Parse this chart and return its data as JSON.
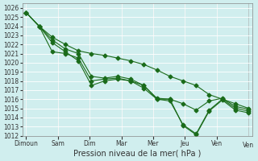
{
  "title": "",
  "xlabel": "Pression niveau de la mer( hPa )",
  "ylabel": "",
  "background_color": "#d0eeee",
  "grid_color": "#ffffff",
  "line_color": "#1a6b1a",
  "ylim": [
    1012,
    1026
  ],
  "yticks": [
    1012,
    1013,
    1014,
    1015,
    1016,
    1017,
    1018,
    1019,
    1020,
    1021,
    1022,
    1023,
    1024,
    1025,
    1026
  ],
  "xtick_labels": [
    "Dimoun",
    "Sam",
    "Dim",
    "Mar",
    "Mer",
    "Jeu",
    "Ven"
  ],
  "series": [
    [
      1025.5,
      1024.0,
      1022.5,
      1021.5,
      1021.0,
      1018.5,
      1018.3,
      1018.5,
      1018.2,
      1017.5,
      1016.1,
      1016.0,
      1015.5,
      1014.8,
      1015.8,
      1016.1,
      1015.2,
      1014.9
    ],
    [
      1025.5,
      1024.0,
      1022.2,
      1021.2,
      1020.2,
      1017.5,
      1018.0,
      1018.2,
      1018.0,
      1017.2,
      1016.0,
      1015.8,
      1013.2,
      1012.2,
      1014.8,
      1016.0,
      1015.0,
      1014.7
    ],
    [
      1025.5,
      1024.0,
      1022.8,
      1022.0,
      1021.3,
      1021.0,
      1020.8,
      1020.5,
      1020.2,
      1019.8,
      1019.2,
      1018.5,
      1018.0,
      1017.5,
      1016.5,
      1016.0,
      1015.5,
      1015.0
    ],
    [
      1025.5,
      1024.0,
      1021.2,
      1021.0,
      1020.5,
      1018.0,
      1018.2,
      1018.3,
      1018.0,
      1017.5,
      1016.0,
      1016.0,
      1013.1,
      1012.1,
      1014.7,
      1015.9,
      1014.8,
      1014.5
    ]
  ],
  "n_points": 18,
  "xtick_positions": [
    0,
    2.5,
    5,
    7.5,
    10,
    12.5,
    15,
    17.5
  ]
}
